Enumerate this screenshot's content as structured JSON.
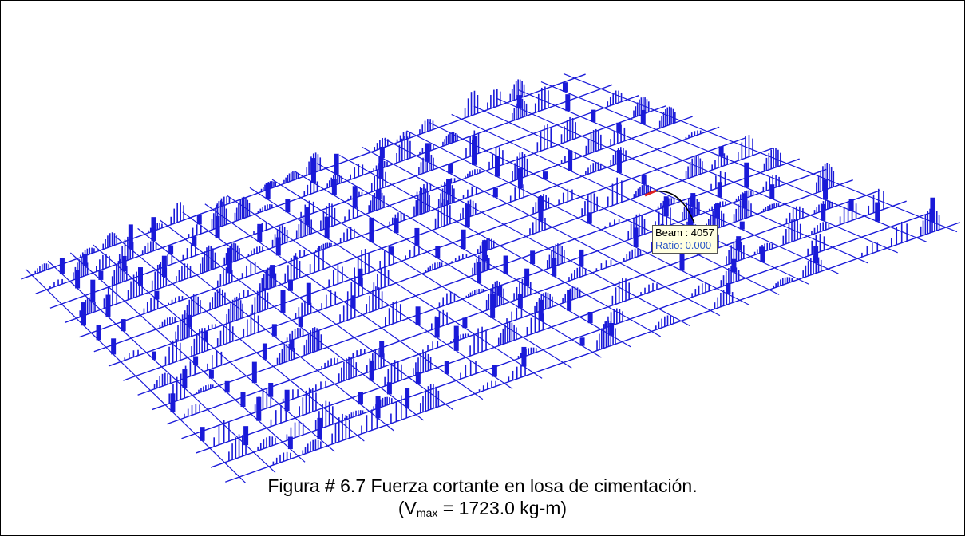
{
  "figure": {
    "tooltip": {
      "title": "Beam : 4057",
      "ratio": "Ratio: 0.000"
    },
    "caption": {
      "line1": "Figura # 6.7  Fuerza cortante en losa de cimentación.",
      "line2_prefix": "(V",
      "line2_subscript": "max",
      "line2_suffix": " = 1723.0 kg-m)"
    }
  }
}
